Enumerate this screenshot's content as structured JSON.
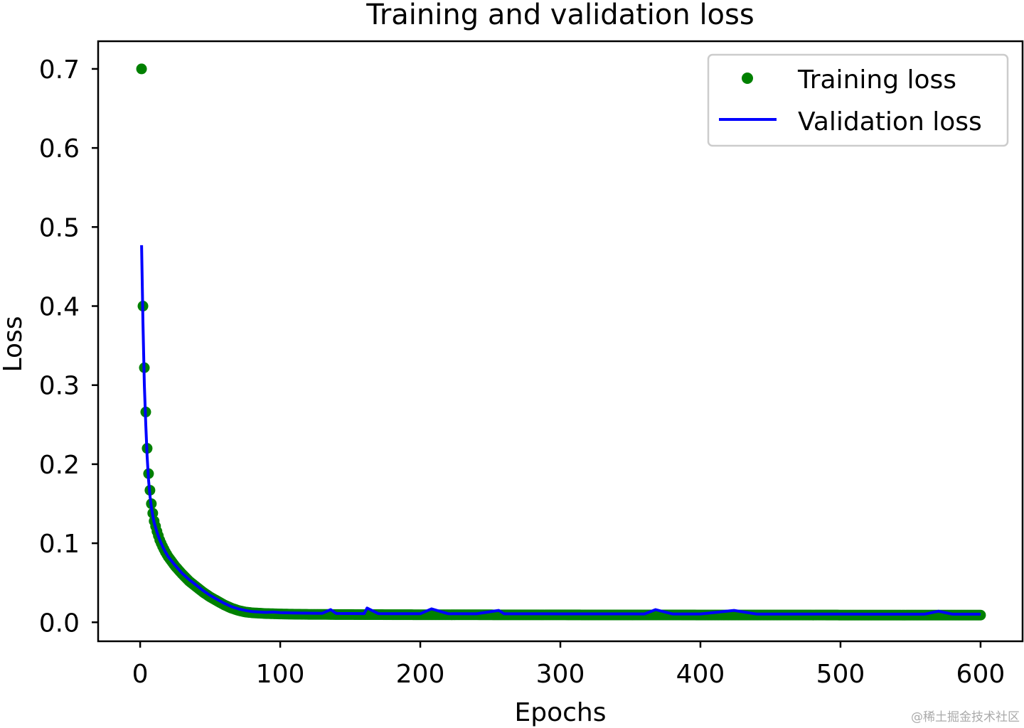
{
  "chart_data": {
    "type": "line",
    "title": "Training and validation loss",
    "xlabel": "Epochs",
    "ylabel": "Loss",
    "xlim": [
      -30,
      630
    ],
    "ylim": [
      -0.024,
      0.735
    ],
    "xticks": [
      0,
      100,
      200,
      300,
      400,
      500,
      600
    ],
    "xtick_labels": [
      "0",
      "100",
      "200",
      "300",
      "400",
      "500",
      "600"
    ],
    "yticks": [
      0.0,
      0.1,
      0.2,
      0.3,
      0.4,
      0.5,
      0.6,
      0.7
    ],
    "ytick_labels": [
      "0.0",
      "0.1",
      "0.2",
      "0.3",
      "0.4",
      "0.5",
      "0.6",
      "0.7"
    ],
    "legend_position": "top-right",
    "grid": false,
    "series": [
      {
        "name": "Training loss",
        "style": "dots",
        "color": "#008000",
        "x": [
          1,
          2,
          3,
          4,
          5,
          6,
          7,
          8,
          9,
          10,
          12,
          14,
          16,
          18,
          20,
          25,
          30,
          35,
          40,
          45,
          50,
          55,
          60,
          65,
          70,
          75,
          80,
          85,
          90,
          95,
          100,
          110,
          120,
          130,
          140,
          150,
          160,
          170,
          180,
          190,
          200,
          220,
          240,
          260,
          280,
          300,
          320,
          340,
          360,
          380,
          400,
          420,
          440,
          460,
          480,
          500,
          520,
          540,
          560,
          580,
          600
        ],
        "values": [
          0.7,
          0.4,
          0.322,
          0.266,
          0.22,
          0.188,
          0.167,
          0.15,
          0.138,
          0.128,
          0.115,
          0.104,
          0.096,
          0.089,
          0.083,
          0.071,
          0.061,
          0.052,
          0.045,
          0.038,
          0.032,
          0.027,
          0.022,
          0.018,
          0.015,
          0.013,
          0.012,
          0.0115,
          0.011,
          0.0108,
          0.0105,
          0.0102,
          0.01,
          0.01,
          0.0098,
          0.0098,
          0.0097,
          0.0097,
          0.0096,
          0.0096,
          0.0095,
          0.0095,
          0.0095,
          0.0094,
          0.0094,
          0.0094,
          0.0093,
          0.0093,
          0.0093,
          0.0093,
          0.0092,
          0.0092,
          0.0092,
          0.0092,
          0.0092,
          0.0091,
          0.0091,
          0.0091,
          0.0091,
          0.0091,
          0.0091
        ]
      },
      {
        "name": "Validation loss",
        "style": "line",
        "color": "#0000ff",
        "x": [
          1,
          2,
          3,
          4,
          5,
          6,
          7,
          8,
          9,
          10,
          12,
          14,
          16,
          18,
          20,
          25,
          30,
          35,
          40,
          45,
          50,
          55,
          60,
          65,
          70,
          75,
          80,
          85,
          90,
          95,
          100,
          110,
          120,
          130,
          136,
          140,
          150,
          160,
          162,
          170,
          180,
          190,
          200,
          208,
          220,
          240,
          256,
          260,
          280,
          300,
          320,
          340,
          360,
          368,
          380,
          400,
          424,
          440,
          460,
          480,
          500,
          520,
          540,
          560,
          570,
          580,
          600
        ],
        "values": [
          0.477,
          0.38,
          0.3,
          0.25,
          0.21,
          0.18,
          0.16,
          0.146,
          0.135,
          0.126,
          0.114,
          0.104,
          0.096,
          0.089,
          0.083,
          0.072,
          0.062,
          0.054,
          0.047,
          0.04,
          0.034,
          0.029,
          0.024,
          0.02,
          0.017,
          0.015,
          0.0135,
          0.013,
          0.0125,
          0.013,
          0.0122,
          0.0118,
          0.0115,
          0.0113,
          0.016,
          0.0112,
          0.0111,
          0.011,
          0.018,
          0.011,
          0.0109,
          0.0109,
          0.0108,
          0.017,
          0.0108,
          0.0107,
          0.015,
          0.0107,
          0.0107,
          0.0106,
          0.0106,
          0.0106,
          0.0105,
          0.016,
          0.0105,
          0.0105,
          0.015,
          0.0104,
          0.0104,
          0.0104,
          0.0104,
          0.0103,
          0.0103,
          0.0103,
          0.014,
          0.0103,
          0.0103
        ]
      }
    ]
  },
  "watermark": "@稀土掘金技术社区"
}
